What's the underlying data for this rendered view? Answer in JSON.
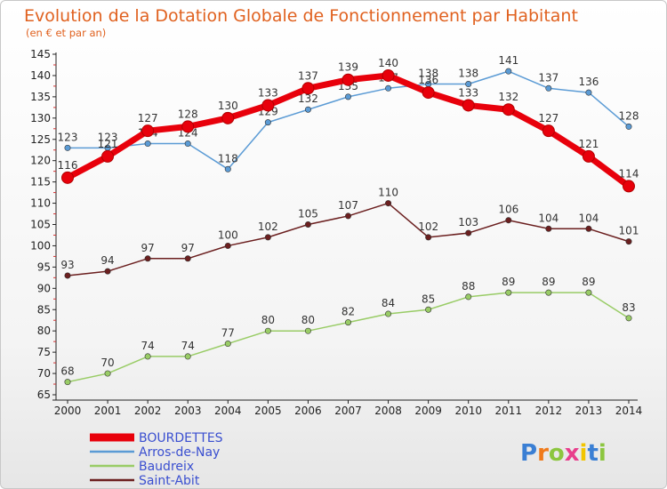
{
  "chart_data": {
    "type": "line",
    "title": "Evolution de la Dotation Globale de Fonctionnement par Habitant",
    "subtitle": "(en € et par an)",
    "x": [
      "2000",
      "2001",
      "2002",
      "2003",
      "2004",
      "2005",
      "2006",
      "2007",
      "2008",
      "2009",
      "2010",
      "2011",
      "2012",
      "2013",
      "2014"
    ],
    "ylim": [
      65,
      145
    ],
    "yticks": [
      65,
      70,
      75,
      80,
      85,
      90,
      95,
      100,
      105,
      110,
      115,
      120,
      125,
      130,
      135,
      140,
      145
    ],
    "grid": false,
    "legend_position": "bottom-left",
    "series": [
      {
        "name": "BOURDETTES",
        "color": "#e8000b",
        "values": [
          116,
          121,
          127,
          128,
          130,
          133,
          137,
          139,
          140,
          136,
          133,
          132,
          127,
          121,
          114
        ],
        "labels": [
          "116",
          "121",
          "127",
          "128",
          "130",
          "133",
          "137",
          "139",
          "140",
          "136",
          "133",
          "132",
          "127",
          "121",
          "114"
        ]
      },
      {
        "name": "Arros-de-Nay",
        "color": "#5b9bd5",
        "values": [
          123,
          123,
          124,
          124,
          118,
          129,
          132,
          135,
          137,
          138,
          138,
          141,
          137,
          136,
          128
        ],
        "labels": [
          "123",
          "123",
          "124",
          "124",
          "118",
          "129",
          "132",
          "135",
          "137",
          "138",
          "138",
          "141",
          "137",
          "136",
          "128"
        ]
      },
      {
        "name": "Baudreix",
        "color": "#99cc66",
        "values": [
          68,
          70,
          74,
          74,
          77,
          80,
          80,
          82,
          84,
          85,
          88,
          89,
          89,
          89,
          83
        ],
        "labels": [
          "68",
          "70",
          "74",
          "74",
          "77",
          "80",
          "80",
          "82",
          "84",
          "85",
          "88",
          "89",
          "89",
          "89",
          "83"
        ]
      },
      {
        "name": "Saint-Abit",
        "color": "#6b1f1f",
        "values": [
          93,
          94,
          97,
          97,
          100,
          102,
          105,
          107,
          110,
          102,
          103,
          106,
          104,
          104,
          101
        ],
        "labels": [
          "93",
          "94",
          "97",
          "97",
          "100",
          "102",
          "105",
          "107",
          "110",
          "102",
          "103",
          "106",
          "104",
          "104",
          "101"
        ]
      }
    ]
  },
  "logo": {
    "letters": [
      "P",
      "r",
      "o",
      "x",
      "i",
      "t",
      "i"
    ],
    "colors": [
      "#3a7fd4",
      "#f07a1a",
      "#8cc63f",
      "#e83e8c",
      "#f2c500",
      "#3a7fd4",
      "#8cc63f"
    ]
  }
}
